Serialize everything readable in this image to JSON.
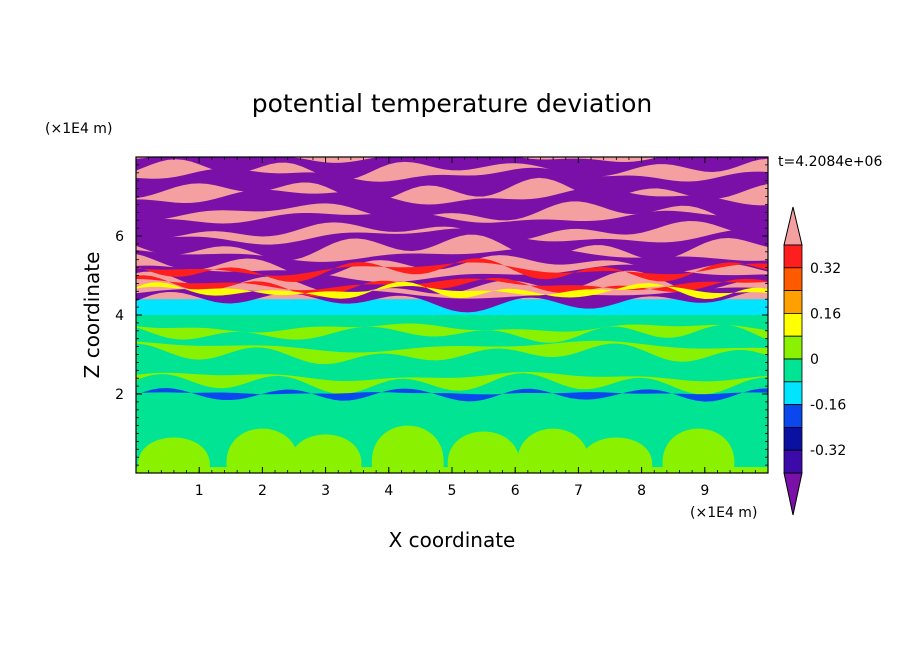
{
  "chart_data": {
    "type": "heatmap",
    "title": "potential temperature deviation",
    "xlabel": "X coordinate",
    "ylabel": "Z coordinate",
    "x_unit": "(×1E4 m)",
    "y_unit": "(×1E4 m)",
    "time_label": "t=4.2084e+06",
    "xlim": [
      0,
      10
    ],
    "ylim": [
      0,
      8
    ],
    "x_ticks": [
      "1",
      "2",
      "3",
      "4",
      "5",
      "6",
      "7",
      "8",
      "9"
    ],
    "y_ticks": [
      "2",
      "4",
      "6"
    ],
    "grid": false,
    "colorbar": {
      "labels": [
        "0.32",
        "0.16",
        "0",
        "-0.16",
        "-0.32"
      ],
      "levels": [
        -0.4,
        -0.32,
        -0.24,
        -0.16,
        -0.08,
        0,
        0.08,
        0.16,
        0.24,
        0.32,
        0.4
      ],
      "colors": [
        "#7a10a8",
        "#3b0aa8",
        "#0a10a0",
        "#0a48ee",
        "#00e4ff",
        "#00e494",
        "#8af200",
        "#ffff00",
        "#ffa000",
        "#ff5a00",
        "#ff1e1e",
        "#f5a0a0"
      ],
      "extend": "both"
    },
    "layers": [
      {
        "z_range": [
          0,
          2.0
        ],
        "dominant": "0 to 0.08",
        "note": "green/yellow-green convective cells near surface"
      },
      {
        "z_range": [
          2.0,
          4.0
        ],
        "dominant": "-0.08 to 0.08",
        "note": "mostly green with thin anomaly streaks"
      },
      {
        "z_range": [
          4.0,
          4.5
        ],
        "dominant": "-0.16 to -0.08",
        "note": "cyan band"
      },
      {
        "z_range": [
          4.5,
          8.0
        ],
        "dominant": "alternating >0.4 and <-0.4",
        "note": "pink and purple stratified layers"
      }
    ]
  },
  "colors": {
    "background": "#ffffff",
    "axis": "#000000"
  }
}
